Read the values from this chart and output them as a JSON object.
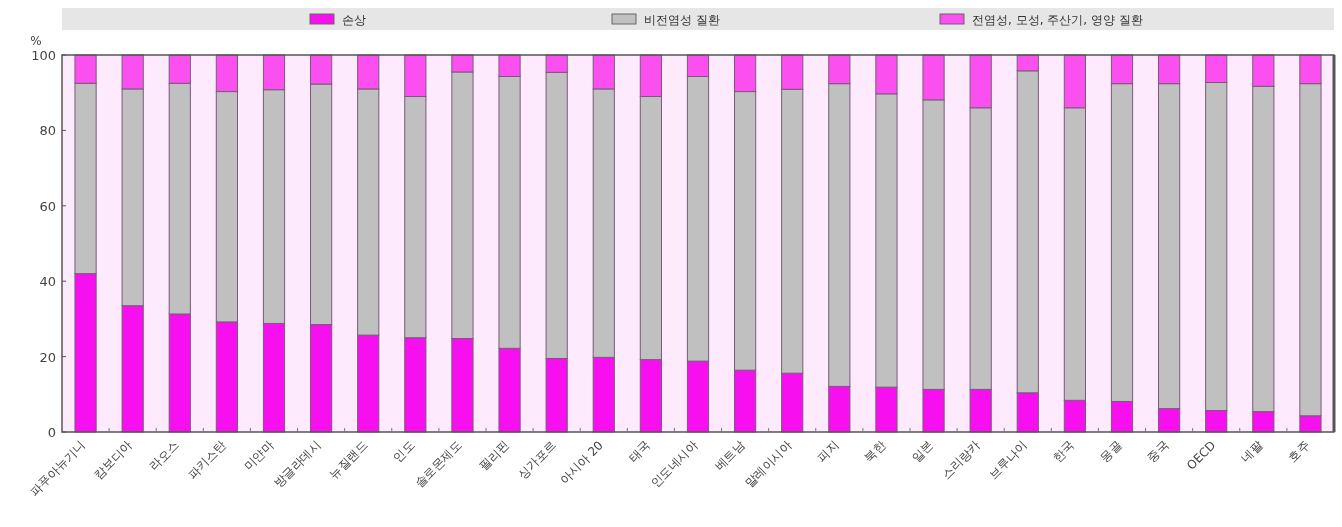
{
  "chart_data": {
    "type": "bar",
    "stacked": true,
    "ylabel": "%",
    "legend": "top",
    "grid": false,
    "categories": [
      "파푸아뉴기니",
      "캄보디아",
      "라오스",
      "파키스탄",
      "미얀마",
      "방글라데시",
      "뉴질랜드",
      "인도",
      "솔로몬제도",
      "필리핀",
      "싱가포르",
      "아시아 20",
      "태국",
      "인도네시아",
      "베트남",
      "말레이시아",
      "피지",
      "북한",
      "일본",
      "스리랑카",
      "브루나이",
      "한국",
      "몽골",
      "중국",
      "OECD",
      "네팔",
      "호주"
    ],
    "series": [
      {
        "name": "손상",
        "color": "#f70ff0",
        "values": [
          42,
          33.5,
          31.3,
          29.2,
          28.8,
          28.5,
          25.7,
          25,
          24.8,
          22.2,
          19.5,
          19.8,
          19.2,
          18.8,
          16.4,
          15.6,
          12.1,
          11.9,
          11.3,
          11.3,
          10.4,
          8.4,
          8.1,
          6.2,
          5.7,
          5.4,
          4.3
        ]
      },
      {
        "name": "비전염성 질환",
        "color": "#c0c0c0",
        "values": [
          50.5,
          57.5,
          61.2,
          61.1,
          62,
          63.8,
          65.3,
          64,
          70.7,
          72.1,
          75.9,
          71.2,
          69.8,
          75.5,
          73.9,
          75.3,
          80.3,
          77.8,
          76.8,
          74.7,
          85.4,
          77.6,
          84.3,
          86.2,
          87,
          86.3,
          88.1
        ]
      },
      {
        "name": "전염성, 모성, 주산기, 영양 질환",
        "color": "#fb4ff0",
        "values": [
          7.5,
          9,
          7.5,
          9.7,
          9.2,
          7.7,
          9,
          11,
          4.5,
          5.7,
          4.6,
          9,
          11,
          5.7,
          9.7,
          9.1,
          7.6,
          10.3,
          11.9,
          14,
          4.2,
          14,
          7.6,
          7.6,
          7.3,
          8.3,
          7.6
        ]
      }
    ],
    "ylim": [
      0,
      100
    ],
    "yticks": [
      0,
      20,
      40,
      60,
      80,
      100
    ]
  }
}
